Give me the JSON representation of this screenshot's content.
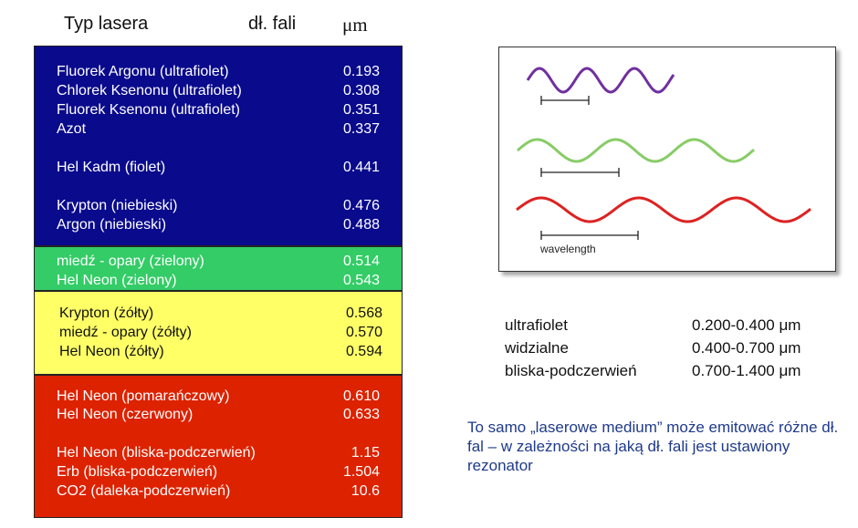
{
  "header": {
    "type": "Typ lasera",
    "wavelength": "dł. fali",
    "unit": "μm"
  },
  "blocks": [
    {
      "color": "#0a0a8c",
      "text_color": "#ffffff",
      "rows": [
        {
          "name": "Fluorek Argonu (ultrafiolet)",
          "value": "0.193"
        },
        {
          "name": "Chlorek Ksenonu (ultrafiolet)",
          "value": "0.308"
        },
        {
          "name": "Fluorek Ksenonu (ultrafiolet)",
          "value": "0.351"
        },
        {
          "name": "Azot",
          "value": "0.337"
        },
        {
          "name": "Hel Kadm (fiolet)",
          "value": "0.441"
        },
        {
          "name": "Krypton (niebieski)",
          "value": "0.476"
        },
        {
          "name": "Argon (niebieski)",
          "value": "0.488"
        }
      ]
    },
    {
      "color": "#33cc66",
      "text_color": "#ffffff",
      "rows": [
        {
          "name": "miedź - opary (zielony)",
          "value": "0.514"
        },
        {
          "name": "Hel Neon (zielony)",
          "value": "0.543"
        }
      ]
    },
    {
      "color": "#ffff66",
      "text_color": "#111111",
      "rows": [
        {
          "name": "Krypton (żółty)",
          "value": "0.568"
        },
        {
          "name": "miedź - opary (żółty)",
          "value": "0.570"
        },
        {
          "name": "Hel Neon (żółty)",
          "value": "0.594"
        }
      ]
    },
    {
      "color": "#dd2200",
      "text_color": "#ffffff",
      "rows": [
        {
          "name": "Hel Neon (pomarańczowy)",
          "value": "0.610"
        },
        {
          "name": "Hel Neon (czerwony)",
          "value": "0.633"
        },
        {
          "name": "Hel Neon (bliska-podczerwień)",
          "value": "1.15"
        },
        {
          "name": "Erb (bliska-podczerwień)",
          "value": "1.504"
        },
        {
          "name": "CO2 (daleka-podczerwień)",
          "value": "10.6"
        }
      ]
    }
  ],
  "diagram": {
    "label": "wavelength",
    "wave_colors": [
      "#7030a0",
      "#88cc66",
      "#dd2222"
    ]
  },
  "ranges": [
    {
      "name": "ultrafiolet",
      "range": "0.200-0.400 μm"
    },
    {
      "name": "widzialne",
      "range": "0.400-0.700 μm"
    },
    {
      "name": "bliska-podczerwień",
      "range": "0.700-1.400 μm"
    }
  ],
  "note": "To samo „laserowe medium” może emitować różne dł. fal – w zależności na jaką dł. fali jest ustawiony rezonator"
}
